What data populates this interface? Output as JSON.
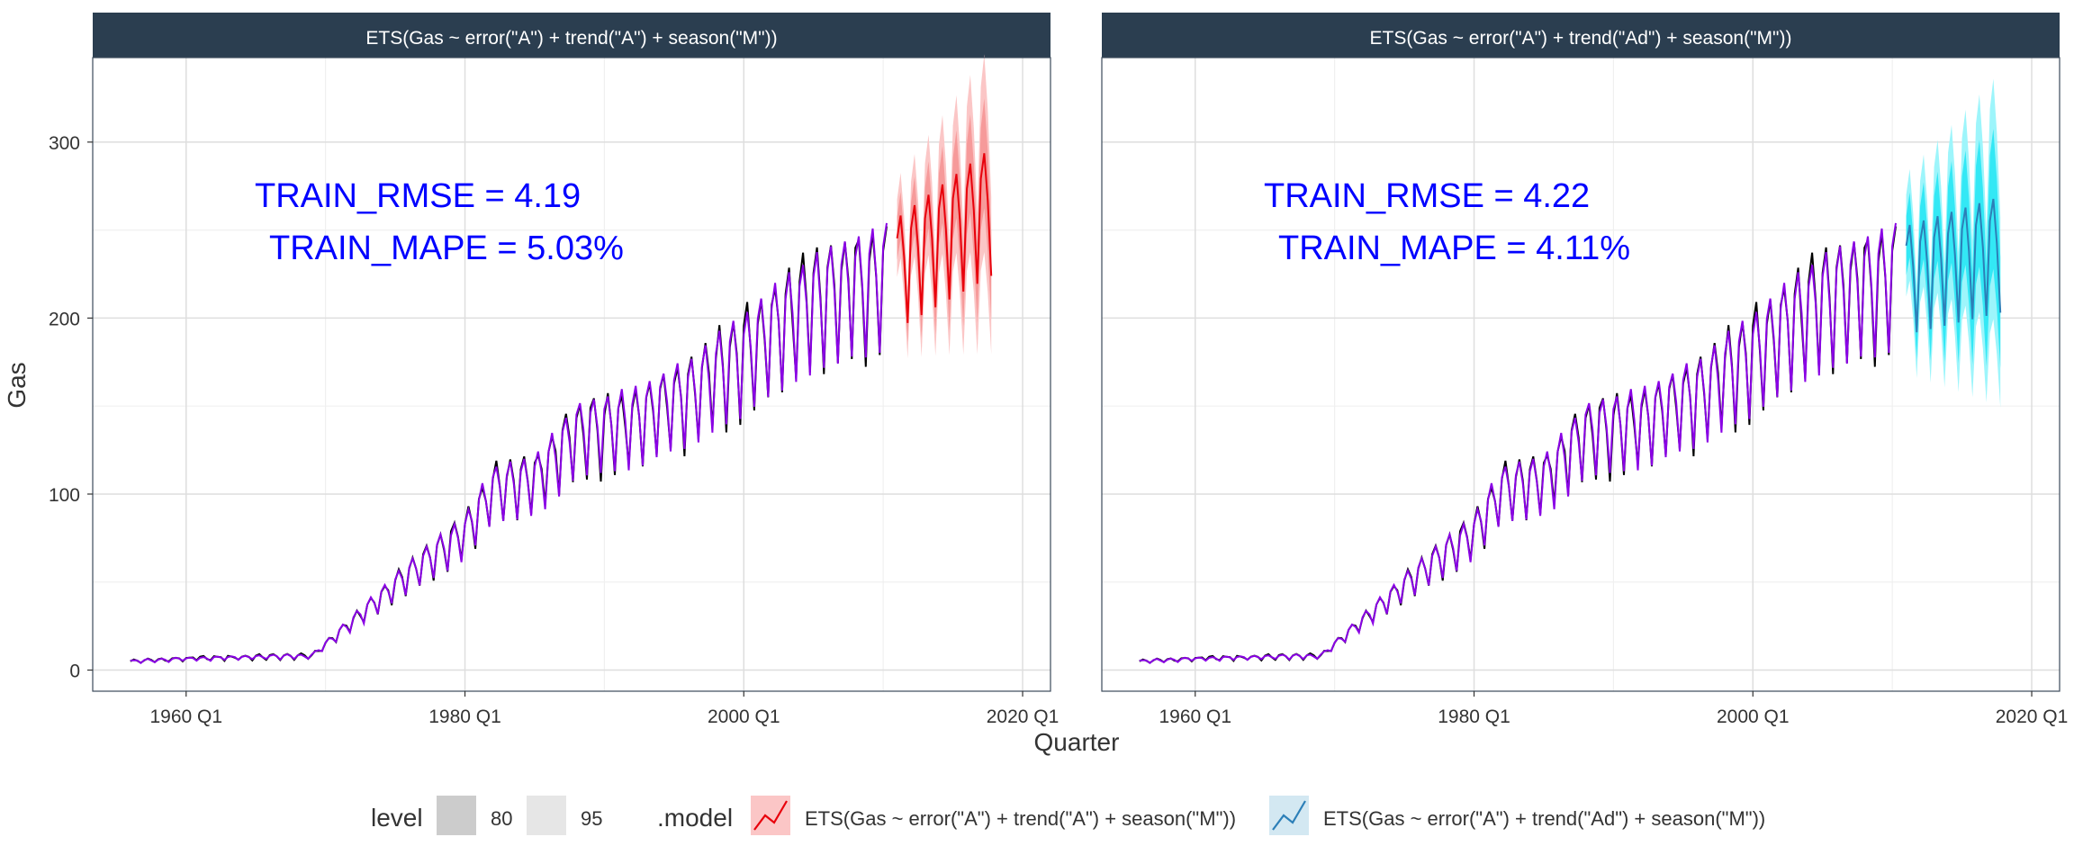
{
  "chart_data": {
    "type": "line",
    "x_label": "Quarter",
    "y_label": "Gas",
    "x_ticks": [
      "1960 Q1",
      "1980 Q1",
      "2000 Q1",
      "2020 Q1"
    ],
    "x_tick_years": [
      1960,
      1980,
      2000,
      2020
    ],
    "y_ticks": [
      0,
      100,
      200,
      300
    ],
    "xlim": [
      1953.3,
      2022.0
    ],
    "ylim": [
      -12,
      348
    ],
    "grid": true,
    "legend_position": "bottom",
    "panels": [
      {
        "title": "ETS(Gas ~ error(\"A\") + trend(\"A\") + season(\"M\"))",
        "annotation_lines": [
          "TRAIN_RMSE = 4.19",
          "TRAIN_MAPE = 5.03%"
        ],
        "forecast": {
          "start": 2011.0,
          "end": 2017.75,
          "start_level": 232,
          "end_level": 268,
          "amplitude": 0.115,
          "band80_rel": 0.05,
          "band95_rel": 0.09,
          "line_color": "#e8000b",
          "band80_color": "#f69a9a",
          "band95_color": "#fbc6c6"
        }
      },
      {
        "title": "ETS(Gas ~ error(\"A\") + trend(\"Ad\") + season(\"M\"))",
        "annotation_lines": [
          "TRAIN_RMSE = 4.22",
          "TRAIN_MAPE = 4.11%"
        ],
        "forecast": {
          "start": 2011.0,
          "end": 2017.75,
          "start_level": 228,
          "end_level": 243,
          "amplitude": 0.115,
          "band80_rel": 0.07,
          "band95_rel": 0.12,
          "line_color": "#2c7fb8",
          "band80_color": "#33e8f5",
          "band95_color": "#9df5fb"
        }
      }
    ],
    "series": [
      {
        "name": "actual",
        "color": "#000000",
        "start": 1956.0,
        "end": 2010.25,
        "trend_knots": [
          [
            1956,
            5
          ],
          [
            1960,
            6.5
          ],
          [
            1965,
            7.5
          ],
          [
            1969,
            8
          ],
          [
            1972,
            28
          ],
          [
            1976,
            55
          ],
          [
            1980,
            78
          ],
          [
            1982,
            103
          ],
          [
            1985,
            108
          ],
          [
            1988,
            135
          ],
          [
            1992,
            142
          ],
          [
            1996,
            157
          ],
          [
            2000,
            180
          ],
          [
            2004,
            205
          ],
          [
            2008,
            220
          ],
          [
            2010.25,
            224
          ]
        ],
        "seasonal_amplitude": 0.14
      },
      {
        "name": "fitted",
        "color": "#8a00e6",
        "start": 1956.0,
        "end": 2010.25
      }
    ],
    "legend": {
      "level_title": "level",
      "level_items": [
        "80",
        "95"
      ],
      "model_title": ".model",
      "model_items": [
        "ETS(Gas ~ error(\"A\") + trend(\"A\") + season(\"M\"))",
        "ETS(Gas ~ error(\"A\") + trend(\"Ad\") + season(\"M\"))"
      ]
    }
  }
}
